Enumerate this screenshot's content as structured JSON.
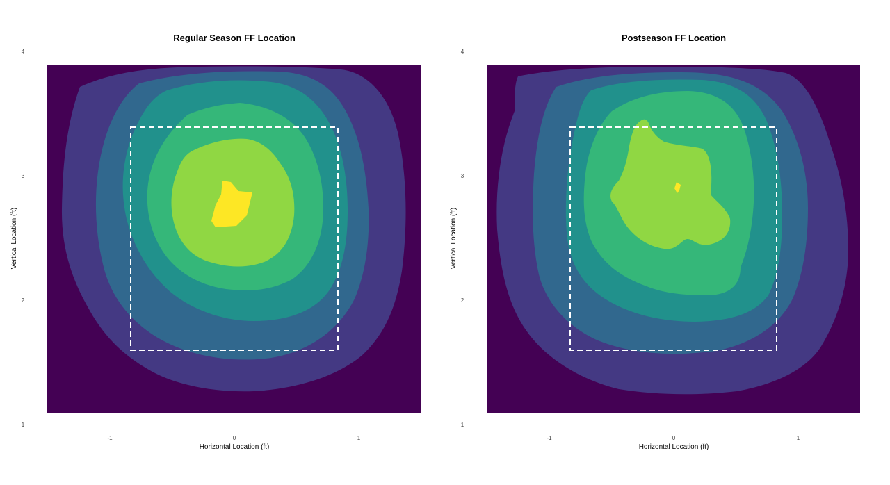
{
  "chart_data": [
    {
      "type": "density_contour",
      "title": "Regular Season FF Location",
      "xlabel": "Horizontal Location (ft)",
      "ylabel": "Vertical Location (ft)",
      "xlim": [
        -1.5,
        1.5
      ],
      "ylim": [
        1.0,
        4.0
      ],
      "x_ticks": [
        "-1",
        "0",
        "1"
      ],
      "y_ticks": [
        "1",
        "2",
        "3",
        "4"
      ],
      "grid": false,
      "strike_zone": {
        "x": [
          -0.83,
          0.83
        ],
        "y": [
          1.6,
          3.4
        ],
        "style": "white dashed"
      },
      "density_peak": {
        "x": 0.0,
        "y": 2.8
      },
      "contour_levels": 7,
      "colormap": [
        "#440154",
        "#443983",
        "#31688e",
        "#21918c",
        "#35b779",
        "#90d743",
        "#fde725"
      ]
    },
    {
      "type": "density_contour",
      "title": "Postseason FF Location",
      "xlabel": "Horizontal Location (ft)",
      "ylabel": "Vertical Location (ft)",
      "xlim": [
        -1.5,
        1.5
      ],
      "ylim": [
        1.0,
        4.0
      ],
      "x_ticks": [
        "-1",
        "0",
        "1"
      ],
      "y_ticks": [
        "1",
        "2",
        "3",
        "4"
      ],
      "grid": false,
      "strike_zone": {
        "x": [
          -0.83,
          0.83
        ],
        "y": [
          1.6,
          3.4
        ],
        "style": "white dashed"
      },
      "density_peak": {
        "x": 0.02,
        "y": 2.9
      },
      "contour_levels": 7,
      "colormap": [
        "#440154",
        "#443983",
        "#31688e",
        "#21918c",
        "#35b779",
        "#90d743",
        "#fde725"
      ]
    }
  ]
}
